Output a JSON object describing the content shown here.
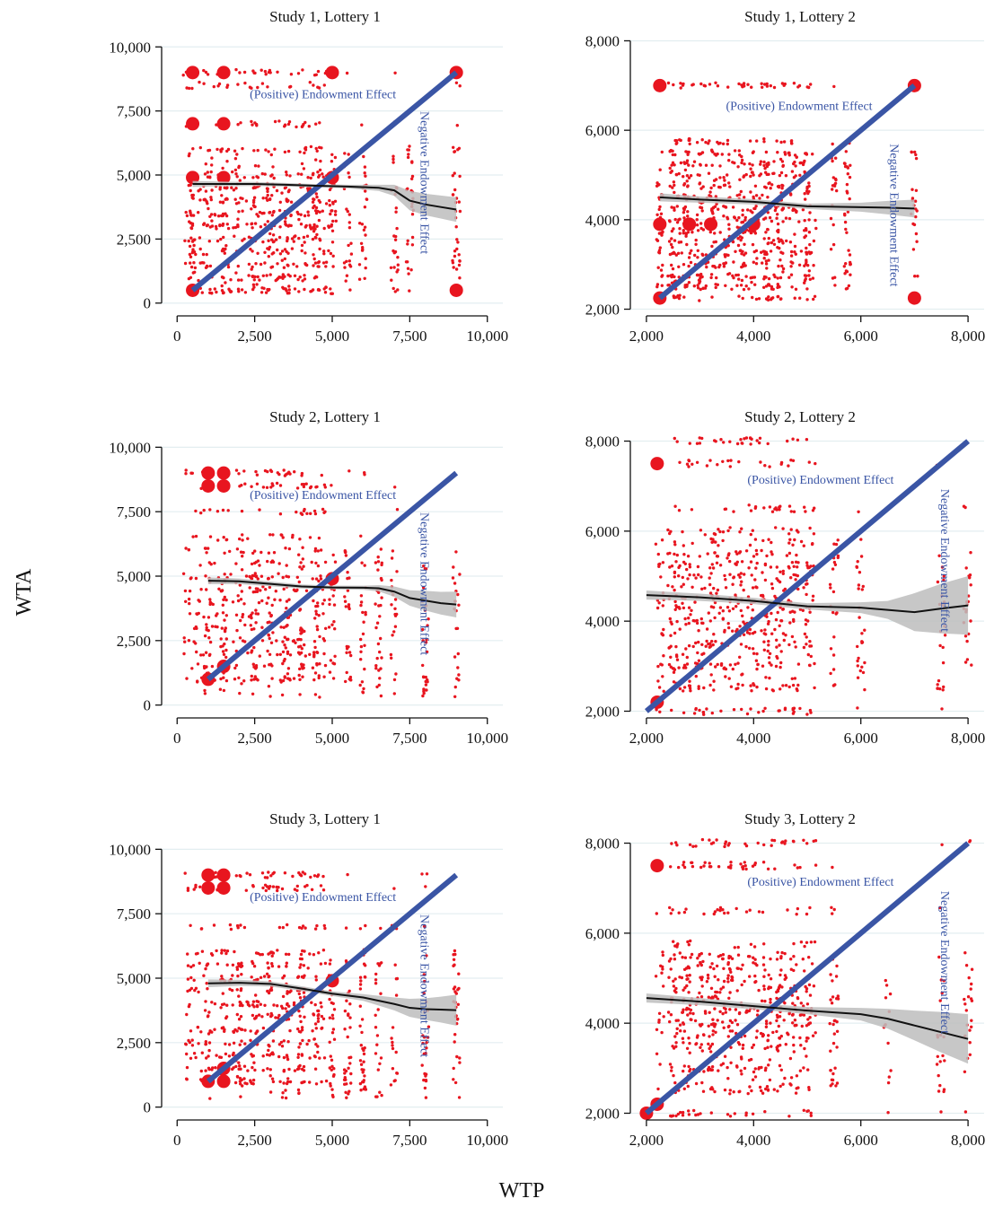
{
  "figure": {
    "ylabel": "WTA",
    "xlabel": "WTP"
  },
  "colors": {
    "points": "#e8151f",
    "diagonal": "#3a55a5",
    "smooth": "#111111",
    "band": "#bdbdbd",
    "grid": "#e3eef0",
    "annotation": "#3a55a5"
  },
  "chart_data": [
    {
      "type": "scatter",
      "title": "Study 1, Lottery 1",
      "xlim": [
        -500,
        10500
      ],
      "ylim": [
        -500,
        10500
      ],
      "xticks": [
        0,
        2500,
        5000,
        7500,
        10000
      ],
      "yticks": [
        0,
        2500,
        5000,
        7500,
        10000
      ],
      "tick_labels": [
        "0",
        "2,500",
        "5,000",
        "7,500",
        "10,000"
      ],
      "diagonal": [
        [
          500,
          500
        ],
        [
          9000,
          9000
        ]
      ],
      "smooth": {
        "x": [
          500,
          1500,
          2500,
          3500,
          4500,
          5500,
          6500,
          7000,
          7500,
          8000,
          8500,
          9000
        ],
        "y": [
          4650,
          4650,
          4650,
          4620,
          4580,
          4550,
          4500,
          4400,
          4000,
          3850,
          3750,
          3650
        ],
        "band": [
          120,
          90,
          80,
          70,
          60,
          70,
          120,
          220,
          380,
          420,
          450,
          480
        ]
      },
      "clusters": [
        [
          500,
          9000
        ],
        [
          500,
          7000
        ],
        [
          500,
          4900
        ],
        [
          500,
          500
        ],
        [
          1500,
          9000
        ],
        [
          1500,
          7000
        ],
        [
          1500,
          4900
        ],
        [
          5000,
          4900
        ],
        [
          5000,
          9000
        ],
        [
          9000,
          9000
        ],
        [
          9000,
          500
        ]
      ],
      "annotations": [
        {
          "text": "(Positive) Endowment Effect",
          "x": 4700,
          "y": 8000
        },
        {
          "text": "Negative Endowment Effect",
          "x": 7850,
          "y": 4700,
          "rotate": 90
        }
      ],
      "gen": {
        "seed": 11,
        "xs": [
          500,
          1000,
          1500,
          2000,
          2500,
          3000,
          3500,
          4000,
          4500,
          5000,
          5500,
          6000,
          7000,
          7500,
          9000
        ],
        "ys": [
          9000,
          8500,
          7000,
          6000,
          5000,
          4500,
          4000,
          3500,
          3000,
          2500,
          2000,
          1500,
          1000,
          500
        ],
        "n": 820,
        "jx": 250,
        "jy": 250
      }
    },
    {
      "type": "scatter",
      "title": "Study 1, Lottery 2",
      "xlim": [
        1700,
        8300
      ],
      "ylim": [
        1850,
        8150
      ],
      "xticks": [
        2000,
        4000,
        6000,
        8000
      ],
      "yticks": [
        2000,
        4000,
        6000,
        8000
      ],
      "tick_labels": [
        "2,000",
        "4,000",
        "6,000",
        "8,000"
      ],
      "diagonal": [
        [
          2250,
          2250
        ],
        [
          7000,
          7000
        ]
      ],
      "smooth": {
        "x": [
          2250,
          3000,
          4000,
          5000,
          6000,
          6500,
          7000
        ],
        "y": [
          4500,
          4450,
          4400,
          4300,
          4280,
          4270,
          4250
        ],
        "band": [
          90,
          70,
          60,
          60,
          100,
          150,
          200
        ]
      },
      "clusters": [
        [
          2250,
          7000
        ],
        [
          2250,
          3900
        ],
        [
          2250,
          2250
        ],
        [
          2800,
          3900
        ],
        [
          3200,
          3900
        ],
        [
          4000,
          3900
        ],
        [
          7000,
          7000
        ],
        [
          7000,
          2250
        ]
      ],
      "annotations": [
        {
          "text": "(Positive) Endowment Effect",
          "x": 4850,
          "y": 6450
        },
        {
          "text": "Negative Endowment Effect",
          "x": 6550,
          "y": 4100,
          "rotate": 90
        }
      ],
      "gen": {
        "seed": 23,
        "xs": [
          2250,
          2500,
          2750,
          3000,
          3250,
          3500,
          3750,
          4000,
          4250,
          4500,
          4750,
          5000,
          5500,
          5750,
          7000
        ],
        "ys": [
          7000,
          5750,
          5500,
          5250,
          5000,
          4750,
          4500,
          4250,
          4000,
          3750,
          3500,
          3250,
          3000,
          2750,
          2500,
          2250
        ],
        "n": 860,
        "jx": 120,
        "jy": 120
      }
    },
    {
      "type": "scatter",
      "title": "Study 2, Lottery 1",
      "xlim": [
        -500,
        10500
      ],
      "ylim": [
        -500,
        10500
      ],
      "xticks": [
        0,
        2500,
        5000,
        7500,
        10000
      ],
      "yticks": [
        0,
        2500,
        5000,
        7500,
        10000
      ],
      "tick_labels": [
        "0",
        "2,500",
        "5,000",
        "7,500",
        "10,000"
      ],
      "diagonal": [
        [
          1000,
          1000
        ],
        [
          9000,
          9000
        ]
      ],
      "smooth": {
        "x": [
          1000,
          2000,
          3000,
          4000,
          5000,
          6000,
          6500,
          7000,
          7500,
          8000,
          8500,
          9000
        ],
        "y": [
          4820,
          4800,
          4700,
          4600,
          4560,
          4550,
          4530,
          4400,
          4150,
          4050,
          3950,
          3900
        ],
        "band": [
          130,
          110,
          90,
          80,
          70,
          80,
          120,
          200,
          300,
          380,
          440,
          500
        ]
      },
      "clusters": [
        [
          1000,
          9000
        ],
        [
          1000,
          8500
        ],
        [
          1000,
          1000
        ],
        [
          1500,
          9000
        ],
        [
          1500,
          8500
        ],
        [
          1500,
          1500
        ],
        [
          5000,
          4900
        ]
      ],
      "annotations": [
        {
          "text": "(Positive) Endowment Effect",
          "x": 4700,
          "y": 8000
        },
        {
          "text": "Negative Endowment Effect",
          "x": 7850,
          "y": 4700,
          "rotate": 90
        }
      ],
      "gen": {
        "seed": 37,
        "xs": [
          1000,
          1500,
          2000,
          2500,
          3000,
          3500,
          4000,
          4500,
          5000,
          5500,
          6000,
          6500,
          7000,
          8000,
          9000
        ],
        "ys": [
          9000,
          8500,
          7500,
          6500,
          6000,
          5500,
          5000,
          4500,
          4000,
          3500,
          3000,
          2500,
          2000,
          1500,
          1000
        ],
        "n": 700,
        "jx": 220,
        "jy": 220
      }
    },
    {
      "type": "scatter",
      "title": "Study 2, Lottery 2",
      "xlim": [
        1700,
        8300
      ],
      "ylim": [
        1850,
        8150
      ],
      "xticks": [
        2000,
        4000,
        6000,
        8000
      ],
      "yticks": [
        2000,
        4000,
        6000,
        8000
      ],
      "tick_labels": [
        "2,000",
        "4,000",
        "6,000",
        "8,000"
      ],
      "diagonal": [
        [
          2000,
          2000
        ],
        [
          8000,
          8000
        ]
      ],
      "smooth": {
        "x": [
          2000,
          3000,
          4000,
          5000,
          6000,
          6500,
          7000,
          7500,
          8000
        ],
        "y": [
          4580,
          4530,
          4450,
          4330,
          4300,
          4250,
          4200,
          4280,
          4350
        ],
        "band": [
          100,
          80,
          70,
          70,
          120,
          200,
          420,
          550,
          650
        ]
      },
      "clusters": [
        [
          2200,
          7500
        ],
        [
          2200,
          2200
        ]
      ],
      "annotations": [
        {
          "text": "(Positive) Endowment Effect",
          "x": 5250,
          "y": 7050
        },
        {
          "text": "Negative Endowment Effect",
          "x": 7500,
          "y": 5350,
          "rotate": 90
        }
      ],
      "gen": {
        "seed": 41,
        "xs": [
          2000,
          2250,
          2500,
          2750,
          3000,
          3250,
          3500,
          3750,
          4000,
          4250,
          4500,
          4750,
          5000,
          5500,
          6000,
          7500,
          8000
        ],
        "ys": [
          8000,
          7500,
          6500,
          6000,
          5750,
          5500,
          5250,
          5000,
          4750,
          4500,
          4250,
          4000,
          3750,
          3500,
          3000,
          2500,
          2000
        ],
        "n": 780,
        "jx": 160,
        "jy": 160
      }
    },
    {
      "type": "scatter",
      "title": "Study 3, Lottery 1",
      "xlim": [
        -500,
        10500
      ],
      "ylim": [
        -500,
        10500
      ],
      "xticks": [
        0,
        2500,
        5000,
        7500,
        10000
      ],
      "yticks": [
        0,
        2500,
        5000,
        7500,
        10000
      ],
      "tick_labels": [
        "0",
        "2,500",
        "5,000",
        "7,500",
        "10,000"
      ],
      "diagonal": [
        [
          1000,
          1000
        ],
        [
          9000,
          9000
        ]
      ],
      "smooth": {
        "x": [
          1000,
          2000,
          3000,
          4000,
          5000,
          6000,
          7000,
          7500,
          8000,
          8500,
          9000
        ],
        "y": [
          4800,
          4820,
          4780,
          4600,
          4400,
          4250,
          4000,
          3850,
          3800,
          3780,
          3760
        ],
        "band": [
          150,
          120,
          100,
          90,
          90,
          130,
          250,
          350,
          420,
          500,
          600
        ]
      },
      "clusters": [
        [
          1000,
          9000
        ],
        [
          1000,
          8500
        ],
        [
          1000,
          1000
        ],
        [
          1500,
          9000
        ],
        [
          1500,
          8500
        ],
        [
          1500,
          1000
        ],
        [
          1500,
          1500
        ],
        [
          5000,
          4900
        ]
      ],
      "annotations": [
        {
          "text": "(Positive) Endowment Effect",
          "x": 4700,
          "y": 8000
        },
        {
          "text": "Negative Endowment Effect",
          "x": 7850,
          "y": 4700,
          "rotate": 90
        }
      ],
      "gen": {
        "seed": 53,
        "xs": [
          1000,
          1500,
          2000,
          2500,
          3000,
          3500,
          4000,
          4500,
          5000,
          5500,
          6000,
          6500,
          7000,
          8000,
          9000
        ],
        "ys": [
          9000,
          8500,
          7000,
          6000,
          5500,
          5000,
          4500,
          4000,
          3500,
          3000,
          2500,
          2000,
          1500,
          1000
        ],
        "n": 760,
        "jx": 220,
        "jy": 220
      }
    },
    {
      "type": "scatter",
      "title": "Study 3, Lottery 2",
      "xlim": [
        1700,
        8300
      ],
      "ylim": [
        1850,
        8150
      ],
      "xticks": [
        2000,
        4000,
        6000,
        8000
      ],
      "yticks": [
        2000,
        4000,
        6000,
        8000
      ],
      "tick_labels": [
        "2,000",
        "4,000",
        "6,000",
        "8,000"
      ],
      "diagonal": [
        [
          2000,
          2000
        ],
        [
          8000,
          8000
        ]
      ],
      "smooth": {
        "x": [
          2000,
          3000,
          4000,
          5000,
          6000,
          6500,
          7000,
          7500,
          8000
        ],
        "y": [
          4560,
          4480,
          4380,
          4280,
          4200,
          4100,
          3950,
          3800,
          3650
        ],
        "band": [
          100,
          80,
          70,
          80,
          140,
          220,
          330,
          450,
          550
        ]
      },
      "clusters": [
        [
          2200,
          7500
        ],
        [
          2200,
          2200
        ],
        [
          2000,
          2000
        ]
      ],
      "annotations": [
        {
          "text": "(Positive) Endowment Effect",
          "x": 5250,
          "y": 7050
        },
        {
          "text": "Negative Endowment Effect",
          "x": 7500,
          "y": 5350,
          "rotate": 90
        }
      ],
      "gen": {
        "seed": 67,
        "xs": [
          2000,
          2250,
          2500,
          2750,
          3000,
          3250,
          3500,
          3750,
          4000,
          4250,
          4500,
          4750,
          5000,
          5500,
          6500,
          7500,
          8000
        ],
        "ys": [
          8000,
          7500,
          6500,
          5750,
          5500,
          5250,
          5000,
          4750,
          4500,
          4250,
          4000,
          3750,
          3500,
          3000,
          2500,
          2000
        ],
        "n": 780,
        "jx": 160,
        "jy": 160
      }
    }
  ]
}
